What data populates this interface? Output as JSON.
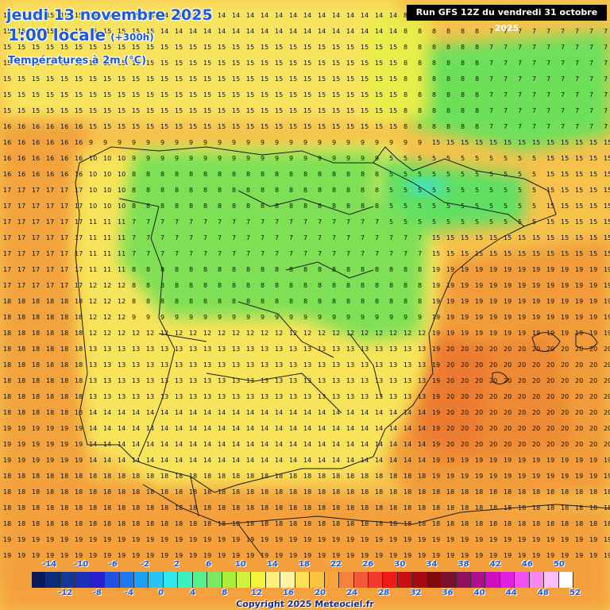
{
  "header": {
    "date": "jeudi 13 novembre 2025",
    "time": "1:00 locale",
    "lead": "(+300h)",
    "parameter": "Températures à 2m (°C)",
    "run": "Run GFS 12Z du vendredi 31 octobre 2025"
  },
  "legend": {
    "top_labels": [
      "-14",
      "-10",
      "-6",
      "-2",
      "2",
      "6",
      "10",
      "14",
      "18",
      "22",
      "26",
      "30",
      "34",
      "38",
      "42",
      "46",
      "50"
    ],
    "bottom_labels": [
      "-12",
      "-8",
      "-4",
      "0",
      "4",
      "8",
      "12",
      "16",
      "20",
      "24",
      "28",
      "32",
      "36",
      "40",
      "44",
      "48",
      "52"
    ],
    "colors": [
      "#0a1a5a",
      "#0c2a7a",
      "#14389a",
      "#1c2fb8",
      "#2a1fd0",
      "#2451e0",
      "#1f78ef",
      "#1aa0f5",
      "#26c4f7",
      "#2fe8f0",
      "#3cf0c0",
      "#55f08a",
      "#7ae860",
      "#a8ee3a",
      "#d0f23a",
      "#f3f53c",
      "#fbf07a",
      "#fff3a6",
      "#fde154",
      "#fbc43e",
      "#f8a33b",
      "#f5823a",
      "#f25a37",
      "#f03a2e",
      "#ee1a1a",
      "#cc0e12",
      "#a50a10",
      "#800a0a",
      "#7a1030",
      "#901060",
      "#b01090",
      "#d010c0",
      "#e020e0",
      "#f050f0",
      "#f888f0",
      "#fcc0f8",
      "#ffffff"
    ]
  },
  "footer": {
    "copyright": "Copyright 2025 Meteociel.fr"
  }
}
